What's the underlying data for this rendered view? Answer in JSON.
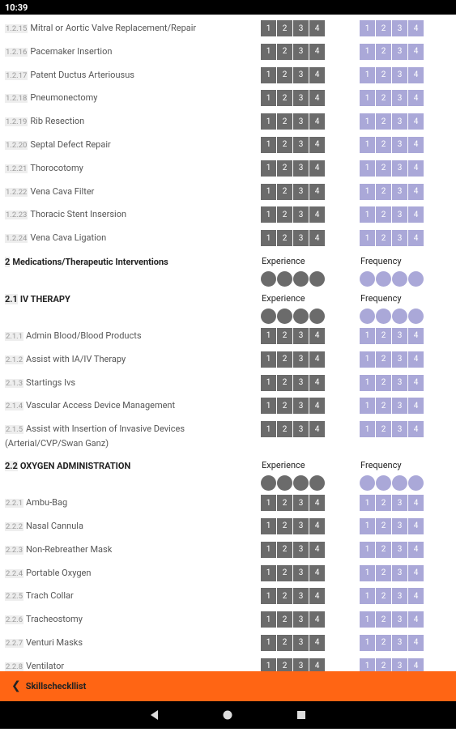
{
  "status_bar": {
    "time": "10:39"
  },
  "scale": [
    "1",
    "2",
    "3",
    "4"
  ],
  "column_headers": {
    "experience": "Experience",
    "frequency": "Frequency"
  },
  "items": [
    {
      "number": "1.2.15",
      "label": "Mitral or Aortic Valve Replacement/Repair"
    },
    {
      "number": "1.2.16",
      "label": "Pacemaker Insertion"
    },
    {
      "number": "1.2.17",
      "label": "Patent Ductus Arteriousus"
    },
    {
      "number": "1.2.18",
      "label": "Pneumonectomy"
    },
    {
      "number": "1.2.19",
      "label": "Rib Resection"
    },
    {
      "number": "1.2.20",
      "label": "Septal Defect Repair"
    },
    {
      "number": "1.2.21",
      "label": "Thorocotomy"
    },
    {
      "number": "1.2.22",
      "label": "Vena Cava Filter"
    },
    {
      "number": "1.2.23",
      "label": "Thoracic Stent Insersion"
    },
    {
      "number": "1.2.24",
      "label": "Vena Cava Ligation"
    },
    {
      "heading_number": "2",
      "heading": "Medications/Therapeutic Interventions"
    },
    {
      "heading_number": "2.1",
      "heading": "IV THERAPY"
    },
    {
      "number": "2.1.1",
      "label": "Admin Blood/Blood Products"
    },
    {
      "number": "2.1.2",
      "label": "Assist with IA/IV Therapy"
    },
    {
      "number": "2.1.3",
      "label": "Startings Ivs"
    },
    {
      "number": "2.1.4",
      "label": "Vascular Access Device Management"
    },
    {
      "number": "2.1.5",
      "label": "Assist with Insertion of Invasive Devices (Arterial/CVP/Swan Ganz)"
    },
    {
      "heading_number": "2.2",
      "heading": "OXYGEN ADMINISTRATION"
    },
    {
      "number": "2.2.1",
      "label": "Ambu-Bag"
    },
    {
      "number": "2.2.2",
      "label": "Nasal Cannula"
    },
    {
      "number": "2.2.3",
      "label": "Non-Rebreather Mask"
    },
    {
      "number": "2.2.4",
      "label": "Portable Oxygen"
    },
    {
      "number": "2.2.5",
      "label": "Trach Collar"
    },
    {
      "number": "2.2.6",
      "label": "Tracheostomy"
    },
    {
      "number": "2.2.7",
      "label": "Venturi Masks"
    },
    {
      "number": "2.2.8",
      "label": "Ventilator"
    }
  ],
  "footer": {
    "back_label": "Skillscheckllist"
  }
}
